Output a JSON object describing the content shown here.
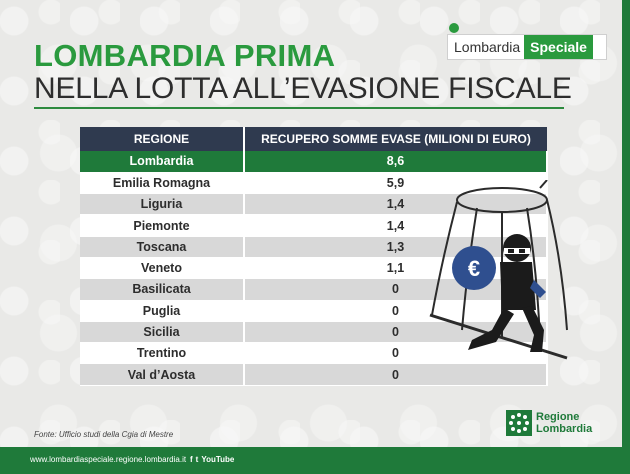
{
  "title": {
    "line1": "LOMBARDIA PRIMA",
    "line2": "NELLA LOTTA ALL’EVASIONE FISCALE"
  },
  "logo": {
    "part1": "Lombardia",
    "part2": "Speciale"
  },
  "table": {
    "headers": [
      "REGIONE",
      "RECUPERO SOMME EVASE (MILIONI DI EURO)"
    ],
    "rows": [
      {
        "region": "Lombardia",
        "value": "8,6"
      },
      {
        "region": "Emilia Romagna",
        "value": "5,9"
      },
      {
        "region": "Liguria",
        "value": "1,4"
      },
      {
        "region": "Piemonte",
        "value": "1,4"
      },
      {
        "region": "Toscana",
        "value": "1,3"
      },
      {
        "region": "Veneto",
        "value": "1,1"
      },
      {
        "region": "Basilicata",
        "value": "0"
      },
      {
        "region": "Puglia",
        "value": "0"
      },
      {
        "region": "Sicilia",
        "value": "0"
      },
      {
        "region": "Trentino",
        "value": "0"
      },
      {
        "region": "Val d’Aosta",
        "value": "0"
      }
    ]
  },
  "source": "Fonte: Ufficio studi della Cgia di Mestre",
  "illustration": {
    "bag_symbol": "€"
  },
  "regione_logo": {
    "line1": "Regione",
    "line2": "Lombardia"
  },
  "footer": {
    "url": "www.lombardiaspeciale.regione.lombardia.it",
    "social": [
      "f",
      "t",
      "YouTube"
    ]
  },
  "colors": {
    "green": "#2a9a3e",
    "dark_green": "#1f7a3a",
    "navy": "#2f3a4f"
  }
}
